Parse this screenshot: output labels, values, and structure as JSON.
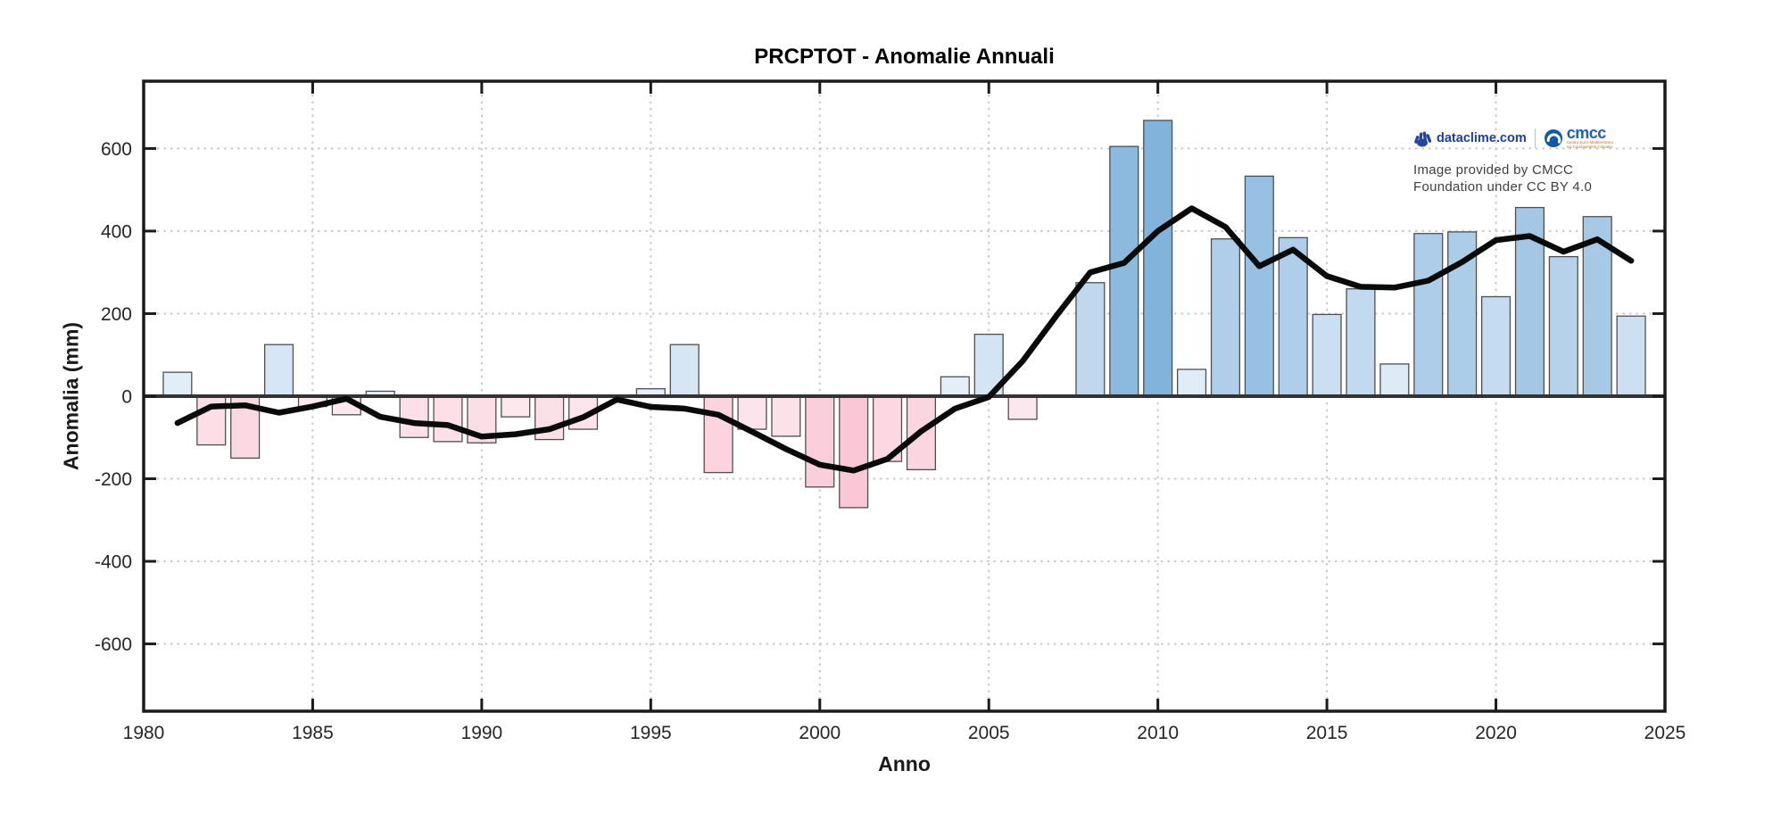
{
  "chart_data": {
    "type": "bar",
    "title": "PRCPTOT - Anomalie Annuali",
    "xlabel": "Anno",
    "ylabel": "Anomalia (mm)",
    "xlim": [
      1980,
      2025
    ],
    "ylim": [
      -763,
      763
    ],
    "xticks": [
      1980,
      1985,
      1990,
      1995,
      2000,
      2005,
      2010,
      2015,
      2020,
      2025
    ],
    "yticks": [
      -600,
      -400,
      -200,
      0,
      200,
      400,
      600
    ],
    "grid": "dotted",
    "legend_position": "none",
    "categories": [
      1981,
      1982,
      1983,
      1984,
      1985,
      1986,
      1987,
      1988,
      1989,
      1990,
      1991,
      1992,
      1993,
      1994,
      1995,
      1996,
      1997,
      1998,
      1999,
      2000,
      2001,
      2002,
      2003,
      2004,
      2005,
      2006,
      2007,
      2008,
      2009,
      2010,
      2011,
      2012,
      2013,
      2014,
      2015,
      2016,
      2017,
      2018,
      2019,
      2020,
      2021,
      2022,
      2023,
      2024
    ],
    "series": [
      {
        "name": "anomalia-annuale-bar",
        "values": [
          58,
          -118,
          -150,
          125,
          -25,
          -45,
          12,
          -100,
          -110,
          -113,
          -50,
          -105,
          -80,
          null,
          18,
          125,
          -185,
          -80,
          -97,
          -220,
          -270,
          -158,
          -178,
          47,
          150,
          -56,
          null,
          275,
          605,
          668,
          65,
          381,
          533,
          384,
          198,
          260,
          78,
          394,
          398,
          241,
          457,
          338,
          435,
          194
        ]
      },
      {
        "name": "media-mobile-line",
        "values": [
          -65,
          -25,
          -22,
          -40,
          -25,
          -6,
          -50,
          -65,
          -70,
          -98,
          -92,
          -80,
          -51,
          -8,
          -26,
          -30,
          -45,
          -86,
          -128,
          -166,
          -180,
          -152,
          -85,
          -30,
          -2,
          85,
          195,
          300,
          323,
          400,
          455,
          410,
          315,
          355,
          291,
          265,
          263,
          280,
          325,
          378,
          388,
          350,
          380,
          328
        ]
      }
    ],
    "colors": {
      "bar_pos_low": "#eaf2fb",
      "bar_pos_high": "#82b3db",
      "bar_neg_low": "#feeff4",
      "bar_neg_high": "#f9c7d5",
      "pos_max": 670,
      "neg_max": 272,
      "bar_edge": "#4f4f4f",
      "trend_line": "#0a0a0a",
      "zero_line": "#333333",
      "grid": "#c9c9c9",
      "axis": "#1a1a1a",
      "tick_label": "#262626"
    }
  },
  "attribution": {
    "brand": "dataclime.com",
    "cmcc_word": "cmcc",
    "cmcc_tagline_1": "Centro Euro-Mediterraneo",
    "cmcc_tagline_2": "sui Cambiamenti Climatici",
    "line1": "Image provided by CMCC",
    "line2": "Foundation under CC BY 4.0"
  }
}
